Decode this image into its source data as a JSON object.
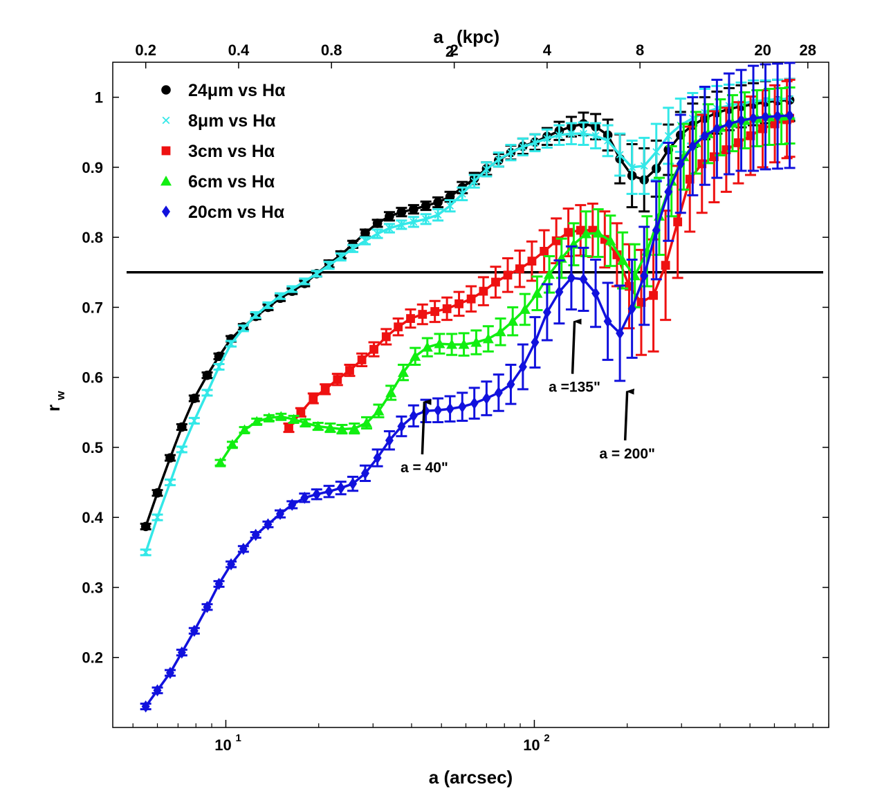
{
  "chart_data": {
    "type": "line",
    "x_scale": "log",
    "xlim": [
      4.3,
      900
    ],
    "ylim": [
      0.1,
      1.05
    ],
    "xlabel": "a (arcsec)",
    "ylabel_main": "r",
    "ylabel_sub": "w",
    "top_axis_label_main": "a",
    "top_axis_label_sub": "2",
    "top_axis_label_tail": "(kpc)",
    "x_ticks": [
      {
        "value": 10,
        "base": "10",
        "exp": "1"
      },
      {
        "value": 100,
        "base": "10",
        "exp": "2"
      }
    ],
    "y_ticks": [
      {
        "value": 0.2,
        "label": "0.2"
      },
      {
        "value": 0.3,
        "label": "0.3"
      },
      {
        "value": 0.4,
        "label": "0.4"
      },
      {
        "value": 0.5,
        "label": "0.5"
      },
      {
        "value": 0.6,
        "label": "0.6"
      },
      {
        "value": 0.7,
        "label": "0.7"
      },
      {
        "value": 0.8,
        "label": "0.8"
      },
      {
        "value": 0.9,
        "label": "0.9"
      },
      {
        "value": 1.0,
        "label": "1"
      }
    ],
    "top_ticks": [
      {
        "arcsec": 5.5,
        "label": "0.2"
      },
      {
        "arcsec": 11.0,
        "label": "0.4"
      },
      {
        "arcsec": 22.0,
        "label": "0.8"
      },
      {
        "arcsec": 55.0,
        "label": "2"
      },
      {
        "arcsec": 110.0,
        "label": "4"
      },
      {
        "arcsec": 220.0,
        "label": "8"
      },
      {
        "arcsec": 550.0,
        "label": "20"
      },
      {
        "arcsec": 770.0,
        "label": "28"
      }
    ],
    "reference_line": {
      "y": 0.75,
      "color": "#000000"
    },
    "legend": [
      {
        "label": "24μm vs Hα",
        "marker": "circle",
        "color": "#000000"
      },
      {
        "label": "8μm vs Hα",
        "marker": "x",
        "color": "#33e8e8"
      },
      {
        "label": "3cm vs Hα",
        "marker": "square",
        "color": "#ee1111"
      },
      {
        "label": "6cm vs Hα",
        "marker": "triangle",
        "color": "#11ee11"
      },
      {
        "label": "20cm vs Hα",
        "marker": "diamond",
        "color": "#1111dd"
      }
    ],
    "series": [
      {
        "name": "24μm vs Hα",
        "color": "#000000",
        "marker": "circle",
        "x": [
          5.5,
          6.0,
          6.6,
          7.2,
          7.9,
          8.7,
          9.5,
          10.4,
          11.4,
          12.5,
          13.7,
          15.0,
          16.4,
          18.0,
          19.7,
          21.6,
          23.6,
          25.8,
          28.3,
          31.0,
          33.9,
          37.1,
          40.6,
          44.5,
          48.7,
          53.3,
          58.4,
          63.9,
          70.0,
          76.6,
          83.9,
          91.8,
          100.5,
          110.0,
          120.4,
          131.8,
          144.3,
          158.0,
          173.0,
          189.4,
          207.3,
          227.0,
          248.5,
          272.0,
          297.8,
          326.0,
          356.9,
          390.7,
          427.8,
          468.3,
          512.7,
          561.2,
          614.4,
          672.6
        ],
        "y": [
          0.387,
          0.435,
          0.485,
          0.529,
          0.57,
          0.603,
          0.63,
          0.655,
          0.672,
          0.687,
          0.7,
          0.713,
          0.723,
          0.734,
          0.748,
          0.762,
          0.775,
          0.79,
          0.806,
          0.82,
          0.83,
          0.836,
          0.84,
          0.845,
          0.85,
          0.858,
          0.871,
          0.884,
          0.898,
          0.91,
          0.921,
          0.93,
          0.936,
          0.944,
          0.952,
          0.958,
          0.962,
          0.958,
          0.946,
          0.912,
          0.888,
          0.882,
          0.898,
          0.925,
          0.946,
          0.96,
          0.97,
          0.978,
          0.983,
          0.987,
          0.99,
          0.993,
          0.995,
          0.996
        ],
        "err": [
          0.004,
          0.004,
          0.004,
          0.004,
          0.004,
          0.004,
          0.004,
          0.004,
          0.004,
          0.004,
          0.004,
          0.004,
          0.004,
          0.004,
          0.004,
          0.005,
          0.005,
          0.005,
          0.005,
          0.005,
          0.006,
          0.006,
          0.006,
          0.006,
          0.007,
          0.007,
          0.008,
          0.008,
          0.009,
          0.009,
          0.01,
          0.011,
          0.011,
          0.012,
          0.013,
          0.014,
          0.016,
          0.018,
          0.022,
          0.035,
          0.045,
          0.045,
          0.04,
          0.036,
          0.033,
          0.031,
          0.03,
          0.03,
          0.03,
          0.03,
          0.03,
          0.03,
          0.03,
          0.03
        ]
      },
      {
        "name": "8μm vs Hα",
        "color": "#33e8e8",
        "marker": "x",
        "x": [
          5.5,
          6.0,
          6.6,
          7.2,
          7.9,
          8.7,
          9.5,
          10.4,
          11.4,
          12.5,
          13.7,
          15.0,
          16.4,
          18.0,
          19.7,
          21.6,
          23.6,
          25.8,
          28.3,
          31.0,
          33.9,
          37.1,
          40.6,
          44.5,
          48.7,
          53.3,
          58.4,
          63.9,
          70.0,
          76.6,
          83.9,
          91.8,
          100.5,
          110.0,
          120.4,
          131.8,
          144.3,
          158.0,
          173.0,
          189.4,
          207.3,
          227.0,
          248.5,
          272.0,
          297.8,
          326.0,
          356.9,
          390.7,
          427.8,
          468.3,
          512.7,
          561.2,
          614.4,
          672.6
        ],
        "y": [
          0.35,
          0.4,
          0.45,
          0.497,
          0.538,
          0.578,
          0.615,
          0.648,
          0.67,
          0.689,
          0.703,
          0.716,
          0.726,
          0.737,
          0.748,
          0.76,
          0.772,
          0.784,
          0.795,
          0.805,
          0.813,
          0.818,
          0.822,
          0.826,
          0.832,
          0.845,
          0.862,
          0.88,
          0.897,
          0.911,
          0.921,
          0.929,
          0.935,
          0.941,
          0.946,
          0.948,
          0.948,
          0.945,
          0.938,
          0.918,
          0.9,
          0.902,
          0.922,
          0.945,
          0.96,
          0.97,
          0.978,
          0.984,
          0.988,
          0.991,
          0.994,
          0.996,
          0.997,
          0.998
        ],
        "err": [
          0.004,
          0.004,
          0.004,
          0.004,
          0.004,
          0.004,
          0.004,
          0.004,
          0.004,
          0.004,
          0.004,
          0.004,
          0.004,
          0.004,
          0.004,
          0.005,
          0.005,
          0.005,
          0.005,
          0.006,
          0.006,
          0.006,
          0.007,
          0.007,
          0.008,
          0.008,
          0.009,
          0.009,
          0.01,
          0.01,
          0.011,
          0.012,
          0.012,
          0.013,
          0.014,
          0.015,
          0.016,
          0.018,
          0.022,
          0.03,
          0.038,
          0.04,
          0.04,
          0.04,
          0.038,
          0.036,
          0.034,
          0.032,
          0.03,
          0.03,
          0.03,
          0.028,
          0.028,
          0.028
        ]
      },
      {
        "name": "3cm vs Hα",
        "color": "#ee1111",
        "marker": "square",
        "x": [
          16.0,
          17.5,
          19.2,
          21.0,
          23.0,
          25.2,
          27.6,
          30.2,
          33.1,
          36.2,
          39.7,
          43.4,
          47.6,
          52.1,
          57.0,
          62.4,
          68.4,
          74.9,
          82.0,
          89.7,
          98.2,
          107.6,
          117.8,
          128.9,
          141.2,
          154.6,
          169.2,
          185.3,
          202.9,
          222.1,
          243.2,
          266.3,
          291.5,
          319.2,
          349.4,
          382.6,
          418.9,
          458.6,
          502.1,
          549.8,
          601.9,
          659.0,
          672.6
        ],
        "y": [
          0.528,
          0.55,
          0.57,
          0.583,
          0.597,
          0.61,
          0.625,
          0.64,
          0.658,
          0.672,
          0.684,
          0.69,
          0.694,
          0.698,
          0.705,
          0.712,
          0.723,
          0.736,
          0.746,
          0.755,
          0.766,
          0.78,
          0.795,
          0.807,
          0.81,
          0.81,
          0.797,
          0.775,
          0.73,
          0.707,
          0.717,
          0.76,
          0.822,
          0.883,
          0.905,
          0.915,
          0.925,
          0.935,
          0.945,
          0.955,
          0.962,
          0.968,
          0.97
        ],
        "err": [
          0.006,
          0.006,
          0.007,
          0.007,
          0.008,
          0.008,
          0.009,
          0.01,
          0.011,
          0.012,
          0.013,
          0.014,
          0.015,
          0.016,
          0.017,
          0.018,
          0.02,
          0.022,
          0.024,
          0.026,
          0.028,
          0.03,
          0.032,
          0.034,
          0.036,
          0.038,
          0.04,
          0.045,
          0.06,
          0.075,
          0.08,
          0.078,
          0.08,
          0.075,
          0.07,
          0.065,
          0.06,
          0.058,
          0.056,
          0.055,
          0.055,
          0.055,
          0.055
        ]
      },
      {
        "name": "6cm vs Hα",
        "color": "#11ee11",
        "marker": "triangle",
        "x": [
          9.6,
          10.5,
          11.5,
          12.6,
          13.8,
          15.1,
          16.6,
          18.1,
          19.9,
          21.8,
          23.8,
          26.1,
          28.6,
          31.3,
          34.3,
          37.6,
          41.1,
          45.0,
          49.3,
          54.0,
          59.1,
          64.8,
          70.9,
          77.7,
          85.1,
          93.2,
          102.1,
          111.8,
          122.5,
          134.2,
          147.0,
          161.0,
          176.4,
          193.3,
          211.7,
          231.9,
          254.0,
          278.3,
          304.9,
          334.0,
          365.9,
          400.8,
          439.0,
          480.9,
          526.8,
          577.0,
          632.1,
          672.6
        ],
        "y": [
          0.478,
          0.504,
          0.525,
          0.537,
          0.542,
          0.544,
          0.54,
          0.535,
          0.53,
          0.528,
          0.526,
          0.527,
          0.535,
          0.552,
          0.578,
          0.607,
          0.63,
          0.643,
          0.648,
          0.647,
          0.647,
          0.65,
          0.655,
          0.665,
          0.68,
          0.697,
          0.72,
          0.747,
          0.77,
          0.79,
          0.805,
          0.806,
          0.795,
          0.767,
          0.745,
          0.78,
          0.83,
          0.88,
          0.915,
          0.935,
          0.948,
          0.957,
          0.963,
          0.967,
          0.97,
          0.972,
          0.973,
          0.974
        ],
        "err": [
          0.004,
          0.004,
          0.004,
          0.004,
          0.004,
          0.004,
          0.005,
          0.005,
          0.005,
          0.006,
          0.006,
          0.007,
          0.008,
          0.009,
          0.01,
          0.011,
          0.012,
          0.013,
          0.014,
          0.015,
          0.016,
          0.017,
          0.018,
          0.019,
          0.02,
          0.022,
          0.024,
          0.026,
          0.028,
          0.03,
          0.032,
          0.034,
          0.036,
          0.04,
          0.045,
          0.05,
          0.055,
          0.05,
          0.047,
          0.044,
          0.042,
          0.04,
          0.04,
          0.04,
          0.04,
          0.04,
          0.04,
          0.04
        ]
      },
      {
        "name": "20cm vs Hα",
        "color": "#1111dd",
        "marker": "diamond",
        "x": [
          5.5,
          6.0,
          6.6,
          7.2,
          7.9,
          8.7,
          9.5,
          10.4,
          11.4,
          12.5,
          13.7,
          15.0,
          16.4,
          18.0,
          19.7,
          21.6,
          23.6,
          25.8,
          28.3,
          31.0,
          33.9,
          37.1,
          40.6,
          44.5,
          48.7,
          53.3,
          58.4,
          63.9,
          70.0,
          76.6,
          83.9,
          91.8,
          100.5,
          110.0,
          120.4,
          131.8,
          144.3,
          158.0,
          173.0,
          189.4,
          207.3,
          227.0,
          248.5,
          272.0,
          297.8,
          326.0,
          356.9,
          390.7,
          427.8,
          468.3,
          512.7,
          561.2,
          614.4,
          672.6
        ],
        "y": [
          0.13,
          0.153,
          0.178,
          0.207,
          0.238,
          0.272,
          0.305,
          0.333,
          0.355,
          0.375,
          0.39,
          0.405,
          0.418,
          0.428,
          0.433,
          0.437,
          0.442,
          0.448,
          0.463,
          0.485,
          0.51,
          0.53,
          0.545,
          0.552,
          0.553,
          0.555,
          0.558,
          0.563,
          0.57,
          0.578,
          0.59,
          0.615,
          0.65,
          0.693,
          0.722,
          0.742,
          0.74,
          0.72,
          0.68,
          0.663,
          0.698,
          0.745,
          0.81,
          0.865,
          0.905,
          0.93,
          0.945,
          0.955,
          0.962,
          0.967,
          0.97,
          0.972,
          0.973,
          0.974
        ],
        "err": [
          0.004,
          0.004,
          0.004,
          0.004,
          0.004,
          0.004,
          0.004,
          0.004,
          0.004,
          0.004,
          0.004,
          0.005,
          0.005,
          0.006,
          0.007,
          0.008,
          0.009,
          0.01,
          0.011,
          0.012,
          0.013,
          0.014,
          0.015,
          0.016,
          0.017,
          0.018,
          0.02,
          0.022,
          0.024,
          0.026,
          0.028,
          0.032,
          0.036,
          0.04,
          0.045,
          0.045,
          0.045,
          0.048,
          0.055,
          0.068,
          0.07,
          0.07,
          0.07,
          0.07,
          0.07,
          0.07,
          0.07,
          0.07,
          0.072,
          0.072,
          0.075,
          0.075,
          0.075,
          0.075
        ]
      }
    ],
    "annotations": [
      {
        "text": "a = 40\"",
        "x": 44.0,
        "y_arrow": 0.565,
        "y_tail": 0.49
      },
      {
        "text": "a =135\"",
        "x": 135.0,
        "y_arrow": 0.68,
        "y_tail": 0.605
      },
      {
        "text": "a = 200\"",
        "x": 200.0,
        "y_arrow": 0.58,
        "y_tail": 0.51
      }
    ]
  }
}
